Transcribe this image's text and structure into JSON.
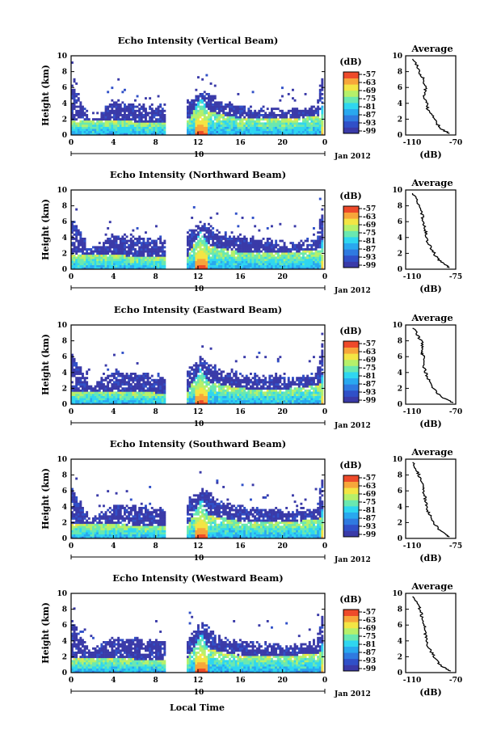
{
  "colors": {
    "scale": [
      "#3a3aa8",
      "#3050c8",
      "#2f7ae0",
      "#29a8ef",
      "#2fd6f0",
      "#6ae8b0",
      "#b6f06a",
      "#f3e544",
      "#f7a63a",
      "#ee4a2a"
    ],
    "text": "#000000",
    "background": "#ffffff"
  },
  "date_label": "Jan 2012",
  "day_label": "10",
  "x_axis_label": "Local Time",
  "avg_title": "Average",
  "unit_label": "(dB)",
  "chart_data": [
    {
      "type": "heatmap",
      "title": "Echo Intensity (Vertical Beam)",
      "ylabel": "Height (km)",
      "xlabel": "Local Time",
      "x_ticks": [
        "0",
        "4",
        "8",
        "12",
        "16",
        "20",
        "0"
      ],
      "xlim": [
        0,
        24
      ],
      "y_ticks": [
        "0",
        "2",
        "4",
        "6",
        "8",
        "10"
      ],
      "ylim": [
        0,
        10
      ],
      "colorbar_label": "(dB)",
      "colorbar_ticks": [
        "-57",
        "-63",
        "-69",
        "-75",
        "-81",
        "-87",
        "-93",
        "-99"
      ],
      "gap_hours": [
        9.0,
        11.0
      ],
      "echo_top_km": [
        [
          0,
          6.5
        ],
        [
          1.8,
          1.8
        ],
        [
          4,
          4.3
        ],
        [
          7.5,
          3.6
        ],
        [
          9,
          3.6
        ],
        [
          11,
          4.3
        ],
        [
          12.5,
          5.6
        ],
        [
          14,
          4.4
        ],
        [
          17,
          3.3
        ],
        [
          21,
          3.1
        ],
        [
          23.2,
          3.6
        ],
        [
          24,
          9.0
        ]
      ],
      "core_top_km": [
        [
          0,
          1.8
        ],
        [
          4,
          1.8
        ],
        [
          9,
          1.6
        ],
        [
          11,
          1.7
        ],
        [
          12.3,
          4.8
        ],
        [
          13,
          3.0
        ],
        [
          16,
          2.1
        ],
        [
          20,
          2.0
        ],
        [
          23.5,
          2.4
        ],
        [
          24,
          5.0
        ]
      ],
      "average": {
        "title": "Average",
        "xlabel": "(dB)",
        "x_ticks": [
          "-110",
          "-70"
        ],
        "xlim": [
          -110,
          -70
        ],
        "ylim": [
          0,
          10
        ],
        "y_ticks": [
          "0",
          "2",
          "4",
          "6",
          "8",
          "10"
        ],
        "profile": [
          [
            -104.0,
            9.6
          ],
          [
            -100.0,
            8.6
          ],
          [
            -99.0,
            7.8
          ],
          [
            -96.0,
            7.2
          ],
          [
            -95.0,
            6.4
          ],
          [
            -94.0,
            5.6
          ],
          [
            -96.0,
            4.8
          ],
          [
            -92.0,
            4.0
          ],
          [
            -93.0,
            3.2
          ],
          [
            -88.0,
            2.4
          ],
          [
            -86.0,
            1.6
          ],
          [
            -82.0,
            0.8
          ],
          [
            -75.0,
            0.2
          ]
        ]
      }
    },
    {
      "type": "heatmap",
      "title": "Echo Intensity (Northward Beam)",
      "ylabel": "Height (km)",
      "xlabel": "Local Time",
      "x_ticks": [
        "0",
        "4",
        "8",
        "12",
        "16",
        "20",
        "0"
      ],
      "xlim": [
        0,
        24
      ],
      "y_ticks": [
        "0",
        "2",
        "4",
        "6",
        "8",
        "10"
      ],
      "ylim": [
        0,
        10
      ],
      "colorbar_label": "(dB)",
      "colorbar_ticks": [
        "-57",
        "-63",
        "-69",
        "-75",
        "-81",
        "-87",
        "-93",
        "-99"
      ],
      "gap_hours": [
        9.0,
        11.0
      ],
      "echo_top_km": [
        [
          0,
          6.5
        ],
        [
          1.8,
          2.6
        ],
        [
          4,
          4.2
        ],
        [
          7.5,
          3.8
        ],
        [
          9,
          3.8
        ],
        [
          11,
          4.5
        ],
        [
          12.5,
          6.0
        ],
        [
          14,
          4.5
        ],
        [
          17,
          4.0
        ],
        [
          21,
          3.3
        ],
        [
          23.2,
          3.7
        ],
        [
          24,
          9.0
        ]
      ],
      "core_top_km": [
        [
          0,
          1.8
        ],
        [
          4,
          1.8
        ],
        [
          9,
          1.5
        ],
        [
          11,
          1.6
        ],
        [
          12.3,
          5.0
        ],
        [
          13,
          3.0
        ],
        [
          16,
          2.2
        ],
        [
          20,
          2.0
        ],
        [
          23.5,
          2.5
        ],
        [
          24,
          5.0
        ]
      ],
      "average": {
        "title": "Average",
        "xlabel": "(dB)",
        "x_ticks": [
          "-110",
          "-75"
        ],
        "xlim": [
          -110,
          -70
        ],
        "ylim": [
          0,
          10
        ],
        "y_ticks": [
          "0",
          "2",
          "4",
          "6",
          "8",
          "10"
        ],
        "profile": [
          [
            -104.0,
            9.6
          ],
          [
            -101.0,
            8.6
          ],
          [
            -99.0,
            7.8
          ],
          [
            -97.0,
            7.0
          ],
          [
            -96.0,
            6.2
          ],
          [
            -95.0,
            5.4
          ],
          [
            -94.0,
            4.6
          ],
          [
            -93.0,
            3.8
          ],
          [
            -91.0,
            3.0
          ],
          [
            -88.0,
            2.2
          ],
          [
            -85.0,
            1.4
          ],
          [
            -80.0,
            0.7
          ],
          [
            -75.0,
            0.2
          ]
        ]
      }
    },
    {
      "type": "heatmap",
      "title": "Echo Intensity (Eastward Beam)",
      "ylabel": "Height (km)",
      "xlabel": "Local Time",
      "x_ticks": [
        "0",
        "4",
        "8",
        "12",
        "16",
        "20",
        "0"
      ],
      "xlim": [
        0,
        24
      ],
      "y_ticks": [
        "0",
        "2",
        "4",
        "6",
        "8",
        "10"
      ],
      "ylim": [
        0,
        10
      ],
      "colorbar_label": "(dB)",
      "colorbar_ticks": [
        "-57",
        "-63",
        "-69",
        "-75",
        "-81",
        "-87",
        "-93",
        "-99"
      ],
      "gap_hours": [
        9.0,
        11.0
      ],
      "echo_top_km": [
        [
          0,
          6.5
        ],
        [
          1.8,
          2.2
        ],
        [
          4,
          4.2
        ],
        [
          7.5,
          3.6
        ],
        [
          9,
          3.6
        ],
        [
          11,
          4.4
        ],
        [
          12.5,
          5.8
        ],
        [
          14,
          4.4
        ],
        [
          17,
          3.6
        ],
        [
          21,
          3.3
        ],
        [
          23.2,
          3.6
        ],
        [
          24,
          9.0
        ]
      ],
      "core_top_km": [
        [
          0,
          1.7
        ],
        [
          4,
          1.7
        ],
        [
          9,
          1.4
        ],
        [
          11,
          1.6
        ],
        [
          12.3,
          4.6
        ],
        [
          13,
          2.8
        ],
        [
          16,
          2.0
        ],
        [
          20,
          1.9
        ],
        [
          23.5,
          2.4
        ],
        [
          24,
          5.0
        ]
      ],
      "average": {
        "title": "Average",
        "xlabel": "(dB)",
        "x_ticks": [
          "-110",
          "-70"
        ],
        "xlim": [
          -110,
          -70
        ],
        "ylim": [
          0,
          10
        ],
        "y_ticks": [
          "0",
          "2",
          "4",
          "6",
          "8",
          "10"
        ],
        "profile": [
          [
            -104.0,
            9.6
          ],
          [
            -100.0,
            8.6
          ],
          [
            -97.0,
            7.8
          ],
          [
            -96.0,
            7.0
          ],
          [
            -98.0,
            6.5
          ],
          [
            -94.0,
            6.0
          ],
          [
            -96.0,
            5.0
          ],
          [
            -94.0,
            4.0
          ],
          [
            -92.0,
            3.2
          ],
          [
            -90.0,
            2.4
          ],
          [
            -86.0,
            1.6
          ],
          [
            -80.0,
            0.8
          ],
          [
            -72.0,
            0.2
          ]
        ]
      }
    },
    {
      "type": "heatmap",
      "title": "Echo Intensity (Southward Beam)",
      "ylabel": "Height (km)",
      "xlabel": "Local Time",
      "x_ticks": [
        "0",
        "4",
        "8",
        "12",
        "16",
        "20",
        "0"
      ],
      "xlim": [
        0,
        24
      ],
      "y_ticks": [
        "0",
        "2",
        "4",
        "6",
        "8",
        "10"
      ],
      "ylim": [
        0,
        10
      ],
      "colorbar_label": "(dB)",
      "colorbar_ticks": [
        "-57",
        "-63",
        "-69",
        "-75",
        "-81",
        "-87",
        "-93",
        "-99"
      ],
      "gap_hours": [
        9.0,
        11.0
      ],
      "echo_top_km": [
        [
          0,
          6.5
        ],
        [
          1.8,
          2.3
        ],
        [
          4,
          4.2
        ],
        [
          7.5,
          3.8
        ],
        [
          9,
          3.8
        ],
        [
          11,
          4.6
        ],
        [
          12.5,
          6.2
        ],
        [
          14,
          4.6
        ],
        [
          17,
          3.8
        ],
        [
          21,
          3.4
        ],
        [
          23.2,
          3.8
        ],
        [
          24,
          9.0
        ]
      ],
      "core_top_km": [
        [
          0,
          1.8
        ],
        [
          4,
          1.8
        ],
        [
          9,
          1.5
        ],
        [
          11,
          1.6
        ],
        [
          12.3,
          5.0
        ],
        [
          13,
          3.0
        ],
        [
          16,
          2.2
        ],
        [
          20,
          2.0
        ],
        [
          23.5,
          2.5
        ],
        [
          24,
          5.0
        ]
      ],
      "average": {
        "title": "Average",
        "xlabel": "(dB)",
        "x_ticks": [
          "-110",
          "-75"
        ],
        "xlim": [
          -110,
          -70
        ],
        "ylim": [
          0,
          10
        ],
        "y_ticks": [
          "0",
          "2",
          "4",
          "6",
          "8",
          "10"
        ],
        "profile": [
          [
            -104.0,
            9.6
          ],
          [
            -101.0,
            8.6
          ],
          [
            -99.0,
            7.8
          ],
          [
            -97.0,
            7.0
          ],
          [
            -96.0,
            6.2
          ],
          [
            -95.0,
            5.4
          ],
          [
            -94.0,
            4.6
          ],
          [
            -93.0,
            3.8
          ],
          [
            -91.0,
            3.0
          ],
          [
            -88.0,
            2.2
          ],
          [
            -85.0,
            1.4
          ],
          [
            -80.0,
            0.7
          ],
          [
            -75.0,
            0.2
          ]
        ]
      }
    },
    {
      "type": "heatmap",
      "title": "Echo Intensity (Westward Beam)",
      "ylabel": "Height (km)",
      "xlabel": "Local Time",
      "x_ticks": [
        "0",
        "4",
        "8",
        "12",
        "16",
        "20",
        "0"
      ],
      "xlim": [
        0,
        24
      ],
      "y_ticks": [
        "0",
        "2",
        "4",
        "6",
        "8",
        "10"
      ],
      "ylim": [
        0,
        10
      ],
      "colorbar_label": "(dB)",
      "colorbar_ticks": [
        "-57",
        "-63",
        "-69",
        "-75",
        "-81",
        "-87",
        "-93",
        "-99"
      ],
      "gap_hours": [
        9.0,
        11.0
      ],
      "echo_top_km": [
        [
          0,
          6.5
        ],
        [
          1.8,
          2.6
        ],
        [
          4,
          4.4
        ],
        [
          7.5,
          4.0
        ],
        [
          9,
          4.0
        ],
        [
          11,
          4.4
        ],
        [
          12.5,
          6.2
        ],
        [
          14,
          4.4
        ],
        [
          17,
          3.8
        ],
        [
          21,
          3.4
        ],
        [
          23.2,
          3.8
        ],
        [
          24,
          9.0
        ]
      ],
      "core_top_km": [
        [
          0,
          1.8
        ],
        [
          4,
          1.8
        ],
        [
          9,
          1.6
        ],
        [
          11,
          1.7
        ],
        [
          12.3,
          5.0
        ],
        [
          13,
          3.0
        ],
        [
          16,
          2.2
        ],
        [
          20,
          2.0
        ],
        [
          23.5,
          2.5
        ],
        [
          24,
          5.0
        ]
      ],
      "average": {
        "title": "Average",
        "xlabel": "(dB)",
        "x_ticks": [
          "-110",
          "-70"
        ],
        "xlim": [
          -110,
          -70
        ],
        "ylim": [
          0,
          10
        ],
        "y_ticks": [
          "0",
          "2",
          "4",
          "6",
          "8",
          "10"
        ],
        "profile": [
          [
            -104.0,
            9.6
          ],
          [
            -100.0,
            8.6
          ],
          [
            -98.0,
            7.8
          ],
          [
            -97.0,
            7.0
          ],
          [
            -95.0,
            6.2
          ],
          [
            -95.0,
            5.4
          ],
          [
            -94.0,
            4.6
          ],
          [
            -93.0,
            3.8
          ],
          [
            -91.0,
            3.0
          ],
          [
            -88.0,
            2.2
          ],
          [
            -85.0,
            1.4
          ],
          [
            -80.0,
            0.7
          ],
          [
            -74.0,
            0.2
          ]
        ]
      }
    }
  ]
}
